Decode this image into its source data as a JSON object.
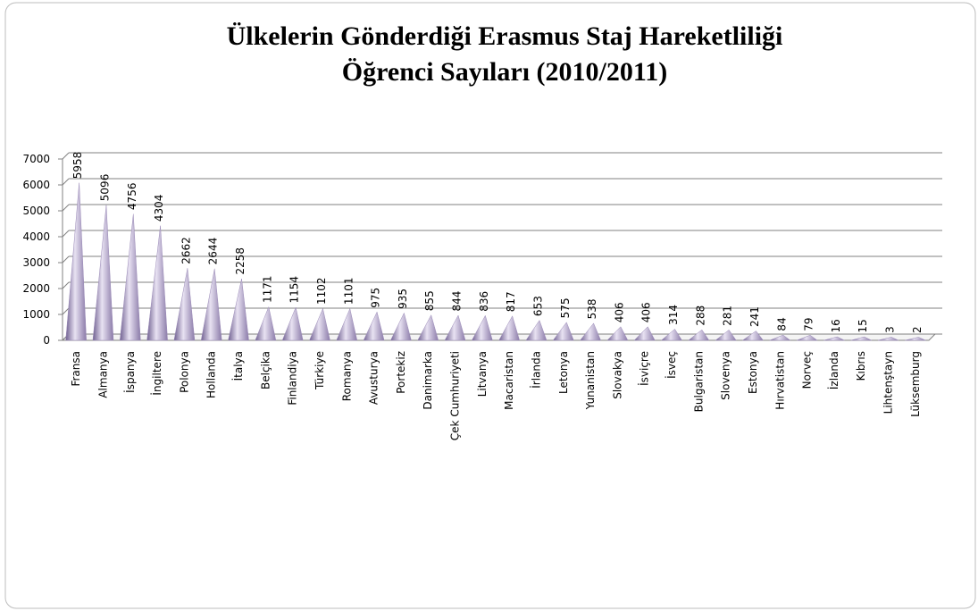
{
  "chart_data": {
    "type": "bar",
    "title": [
      "Ülkelerin Gönderdiği Erasmus Staj Hareketliliği",
      "Öğrenci Sayıları (2010/2011)"
    ],
    "categories": [
      "Fransa",
      "Almanya",
      "İspanya",
      "İngiltere",
      "Polonya",
      "Hollanda",
      "İtalya",
      "Belçika",
      "Finlandiya",
      "Türkiye",
      "Romanya",
      "Avusturya",
      "Portekiz",
      "Danimarka",
      "Çek Cumhuriyeti",
      "Litvanya",
      "Macaristan",
      "İrlanda",
      "Letonya",
      "Yunanistan",
      "Slovakya",
      "İsviçre",
      "İsveç",
      "Bulgaristan",
      "Slovenya",
      "Estonya",
      "Hırvatistan",
      "Norveç",
      "İzlanda",
      "Kıbrıs",
      "Lihtenştayn",
      "Lüksemburg"
    ],
    "values": [
      5958,
      5096,
      4756,
      4304,
      2662,
      2644,
      2258,
      1171,
      1154,
      1102,
      1101,
      975,
      935,
      855,
      844,
      836,
      817,
      653,
      575,
      538,
      406,
      406,
      314,
      288,
      281,
      241,
      84,
      79,
      16,
      15,
      3,
      2
    ],
    "color": "#9b8bb8",
    "ylim": [
      0,
      7000
    ],
    "yticks": [
      0,
      1000,
      2000,
      3000,
      4000,
      5000,
      6000,
      7000
    ],
    "grid": true
  }
}
